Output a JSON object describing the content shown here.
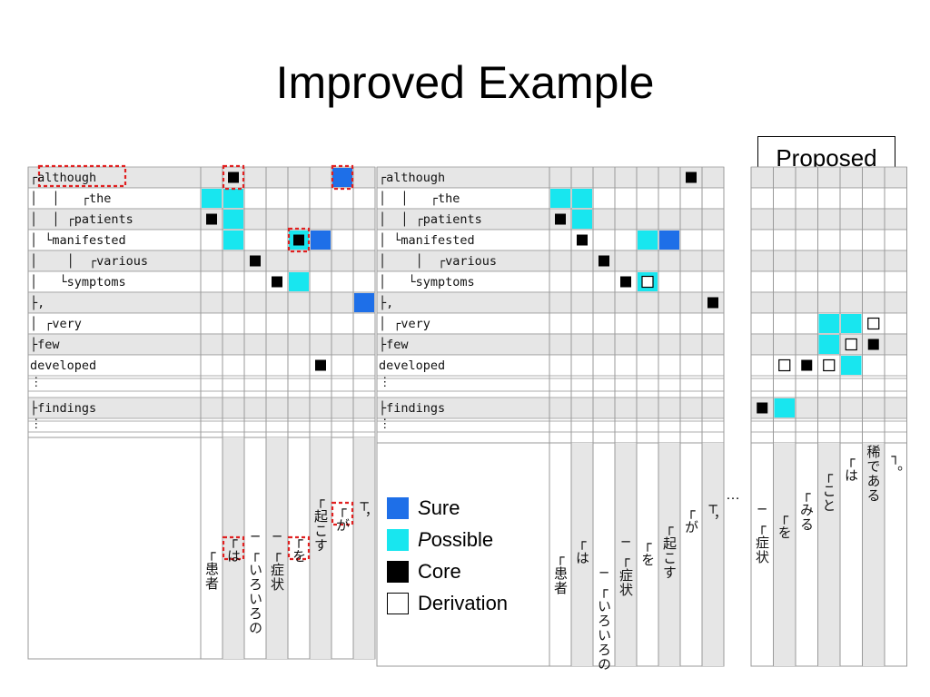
{
  "title": "Improved Example",
  "proposed_label": "Proposed",
  "colors": {
    "sure": "#1e6fe8",
    "possible": "#18e6ef",
    "core": "#000000",
    "derivation": "#ffffff",
    "row_gray": "#e6e6e6",
    "highlight_box": "#e02020"
  },
  "english_tokens": [
    "┌although",
    "│  │   ┌the",
    "│  │ ┌patients",
    "│ └manifested",
    "│    │  ┌various",
    "│   └symptoms",
    "├,",
    "│ ┌very",
    "├few",
    "developed",
    "⋮",
    "├findings",
    "⋮"
  ],
  "japanese_tokens_left": [
    "┌患者",
    "┌は",
    "─┌いろいろの",
    "─┌症状",
    "┌を",
    "┌起こす",
    "┌が",
    "┬，"
  ],
  "japanese_tokens_mid": [
    "┌患者",
    "┌は",
    "─┌いろいろの",
    "─┌症状",
    "┌を",
    "┌起こす",
    "┌が",
    "┬，"
  ],
  "ellipsis": "…",
  "japanese_tokens_right": [
    "─┌症状",
    "┌を",
    "┌みる",
    "┌こと",
    "┌は",
    "稀である",
    "┐。"
  ],
  "legend": [
    {
      "key": "sure",
      "first": "S",
      "rest": "ure"
    },
    {
      "key": "possible",
      "first": "P",
      "rest": "ossible"
    },
    {
      "key": "core",
      "first": "",
      "rest": "Core"
    },
    {
      "key": "derivation",
      "first": "",
      "rest": "Derivation"
    }
  ],
  "left_matrix": {
    "cells": [
      {
        "r": 0,
        "c": 1,
        "t": "core"
      },
      {
        "r": 0,
        "c": 6,
        "t": "sure"
      },
      {
        "r": 1,
        "c": 0,
        "t": "possible"
      },
      {
        "r": 1,
        "c": 1,
        "t": "possible"
      },
      {
        "r": 2,
        "c": 0,
        "t": "core"
      },
      {
        "r": 2,
        "c": 1,
        "t": "possible"
      },
      {
        "r": 3,
        "c": 1,
        "t": "possible"
      },
      {
        "r": 3,
        "c": 4,
        "t": "possible_core"
      },
      {
        "r": 3,
        "c": 5,
        "t": "sure"
      },
      {
        "r": 4,
        "c": 2,
        "t": "core"
      },
      {
        "r": 5,
        "c": 3,
        "t": "core"
      },
      {
        "r": 5,
        "c": 4,
        "t": "possible"
      },
      {
        "r": 6,
        "c": 7,
        "t": "sure"
      },
      {
        "r": 9,
        "c": 5,
        "t": "core"
      }
    ],
    "highlights": [
      {
        "r": 0,
        "c": 1
      },
      {
        "r": 0,
        "c": 6
      },
      {
        "r": 3,
        "c": 4
      }
    ],
    "token_highlights": [
      1,
      4,
      6
    ],
    "row_highlights": [
      0
    ]
  },
  "mid_matrix": {
    "cells": [
      {
        "r": 0,
        "c": 6,
        "t": "core"
      },
      {
        "r": 1,
        "c": 0,
        "t": "possible"
      },
      {
        "r": 1,
        "c": 1,
        "t": "possible"
      },
      {
        "r": 2,
        "c": 0,
        "t": "core"
      },
      {
        "r": 2,
        "c": 1,
        "t": "possible"
      },
      {
        "r": 3,
        "c": 1,
        "t": "core"
      },
      {
        "r": 3,
        "c": 4,
        "t": "possible"
      },
      {
        "r": 3,
        "c": 5,
        "t": "sure"
      },
      {
        "r": 4,
        "c": 2,
        "t": "core"
      },
      {
        "r": 5,
        "c": 3,
        "t": "core"
      },
      {
        "r": 5,
        "c": 4,
        "t": "possible_deriv"
      },
      {
        "r": 6,
        "c": 7,
        "t": "core"
      }
    ]
  },
  "right_matrix": {
    "cells": [
      {
        "r": 7,
        "c": 3,
        "t": "possible"
      },
      {
        "r": 7,
        "c": 4,
        "t": "possible"
      },
      {
        "r": 7,
        "c": 5,
        "t": "deriv"
      },
      {
        "r": 8,
        "c": 3,
        "t": "possible"
      },
      {
        "r": 8,
        "c": 4,
        "t": "deriv"
      },
      {
        "r": 8,
        "c": 5,
        "t": "core"
      },
      {
        "r": 9,
        "c": 1,
        "t": "deriv"
      },
      {
        "r": 9,
        "c": 2,
        "t": "core"
      },
      {
        "r": 9,
        "c": 3,
        "t": "deriv"
      },
      {
        "r": 9,
        "c": 4,
        "t": "possible"
      },
      {
        "r": 11,
        "c": 0,
        "t": "core"
      },
      {
        "r": 11,
        "c": 1,
        "t": "possible"
      }
    ]
  }
}
